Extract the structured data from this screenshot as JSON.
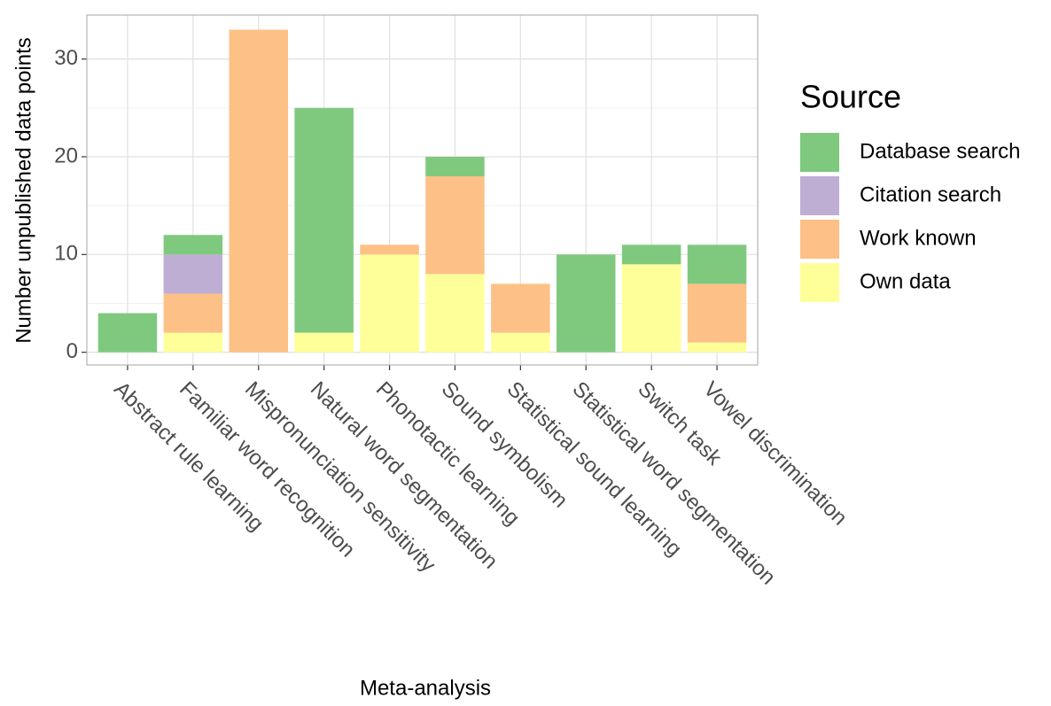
{
  "chart_data": {
    "type": "stacked_bar",
    "x_label": "Meta-analysis",
    "y_label": "Number unpublished data points",
    "legend_title": "Source",
    "categories": [
      "Abstract rule learning",
      "Familiar word recognition",
      "Mispronunciation sensitivity",
      "Natural word segmentation",
      "Phonotactic learning",
      "Sound symbolism",
      "Statistical sound learning",
      "Statistical word segmentation",
      "Switch task",
      "Vowel discrimination"
    ],
    "series": [
      {
        "name": "Database search",
        "color": "#7fc97f",
        "values": [
          4,
          2,
          0,
          23,
          0,
          2,
          0,
          10,
          2,
          4
        ]
      },
      {
        "name": "Citation search",
        "color": "#beaed4",
        "values": [
          0,
          4,
          0,
          0,
          0,
          0,
          0,
          0,
          0,
          0
        ]
      },
      {
        "name": "Work known",
        "color": "#fdc086",
        "values": [
          0,
          4,
          33,
          0,
          1,
          10,
          5,
          0,
          0,
          6
        ]
      },
      {
        "name": "Own data",
        "color": "#ffff99",
        "values": [
          0,
          2,
          0,
          2,
          10,
          8,
          2,
          0,
          9,
          1
        ]
      }
    ],
    "ylim": [
      -1.3,
      34.5
    ],
    "yticks": [
      0,
      10,
      20,
      30
    ],
    "minor_yticks": [
      5,
      15,
      25
    ],
    "grid": true
  }
}
